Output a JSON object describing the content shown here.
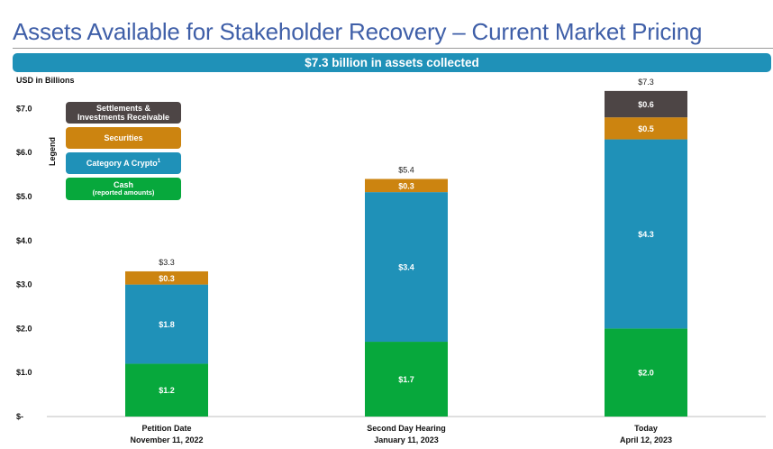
{
  "header": {
    "title": "Assets Available for Stakeholder Recovery – Current Market Pricing",
    "banner": "$7.3 billion in assets collected"
  },
  "colors": {
    "title": "#3f5fa8",
    "banner": "#1f91b8",
    "settlements": "#4d4545",
    "securities": "#cc8410",
    "crypto": "#1f91b8",
    "cash": "#07a83c"
  },
  "legend": {
    "title": "Legend",
    "items": [
      {
        "key": "settlements",
        "label": "Settlements &",
        "label2": "Investments Receivable"
      },
      {
        "key": "securities",
        "label": "Securities"
      },
      {
        "key": "crypto",
        "label": "Category A Crypto",
        "footnote": "1"
      },
      {
        "key": "cash",
        "label": "Cash",
        "sub": "(reported amounts)"
      }
    ]
  },
  "chart_data": {
    "type": "bar",
    "stacked": true,
    "title": "",
    "ylabel": "USD in Billions",
    "xlabel": "",
    "ylim": [
      0,
      7.5
    ],
    "yticks": [
      {
        "value": 0,
        "label": "$-"
      },
      {
        "value": 1,
        "label": "$1.0"
      },
      {
        "value": 2,
        "label": "$2.0"
      },
      {
        "value": 3,
        "label": "$3.0"
      },
      {
        "value": 4,
        "label": "$4.0"
      },
      {
        "value": 5,
        "label": "$5.0"
      },
      {
        "value": 6,
        "label": "$6.0"
      },
      {
        "value": 7,
        "label": "$7.0"
      }
    ],
    "categories": [
      {
        "line1": "Petition Date",
        "line2": "November 11, 2022"
      },
      {
        "line1": "Second Day Hearing",
        "line2": "January 11, 2023"
      },
      {
        "line1": "Today",
        "line2": "April 12, 2023"
      }
    ],
    "totals": [
      "$3.3",
      "$5.4",
      "$7.3"
    ],
    "series": [
      {
        "key": "cash",
        "values": [
          1.2,
          1.7,
          2.0
        ],
        "labels": [
          "$1.2",
          "$1.7",
          "$2.0"
        ]
      },
      {
        "key": "crypto",
        "values": [
          1.8,
          3.4,
          4.3
        ],
        "labels": [
          "$1.8",
          "$3.4",
          "$4.3"
        ]
      },
      {
        "key": "securities",
        "values": [
          0.3,
          0.3,
          0.5
        ],
        "labels": [
          "$0.3",
          "$0.3",
          "$0.5"
        ]
      },
      {
        "key": "settlements",
        "values": [
          0,
          0,
          0.6
        ],
        "labels": [
          "",
          "",
          "$0.6"
        ]
      }
    ]
  }
}
